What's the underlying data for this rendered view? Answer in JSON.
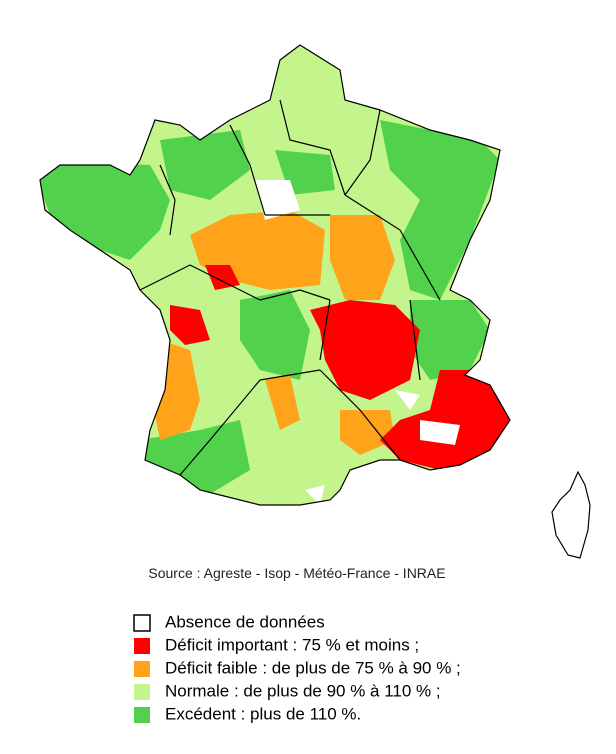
{
  "source": "Source : Agreste - Isop - Météo-France - INRAE",
  "legend": [
    {
      "label": "Absence de données",
      "color": "#ffffff"
    },
    {
      "label": "Déficit important : 75 % et moins ;",
      "color": "#ff0000"
    },
    {
      "label": "Déficit faible : de plus de 75 % à 90 % ;",
      "color": "#ffa31a"
    },
    {
      "label": "Normale : de plus de 90 % à 110 % ;",
      "color": "#c4f58c"
    },
    {
      "label": "Excédent : plus de 110 %.",
      "color": "#52d14c"
    }
  ]
}
